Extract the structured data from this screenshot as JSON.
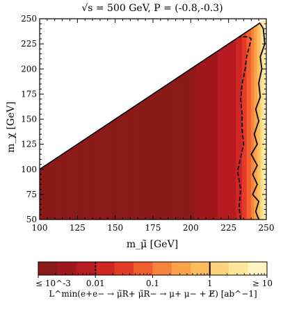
{
  "chart_data": {
    "type": "heatmap",
    "title": "√s = 500 GeV, P = (-0.8,-0.3)",
    "xlabel": "m_μ̃ [GeV]",
    "ylabel": "m_χ [GeV]",
    "xlim": [
      100,
      250
    ],
    "ylim": [
      50,
      250
    ],
    "xticks": [
      100,
      125,
      150,
      175,
      200,
      225,
      250
    ],
    "yticks": [
      50,
      75,
      100,
      125,
      150,
      175,
      200,
      225,
      250
    ],
    "xtick_labels": [
      "100",
      "125",
      "150",
      "175",
      "200",
      "225",
      "250"
    ],
    "ytick_labels": [
      "50",
      "75",
      "100",
      "125",
      "150",
      "175",
      "200",
      "225",
      "250"
    ],
    "allowed_region": "m_χ < m_μ̃",
    "colorbar": {
      "label": "L^min(e+e− → μ̃R+ μ̃R− → μ+ μ− + E̸) [ab^−1]",
      "scale": "log",
      "range": [
        0.001,
        10
      ],
      "tick_labels": [
        "≤ 10^-3",
        "0.01",
        "0.1",
        "1",
        "≥ 10"
      ],
      "tick_values": [
        0.001,
        0.01,
        0.1,
        1,
        10
      ],
      "placement": "bottom",
      "colors": [
        "#8b1a1a",
        "#a0181d",
        "#b81b22",
        "#ce2623",
        "#e23a26",
        "#f25d2e",
        "#f7843b",
        "#fba24b",
        "#fdbd5e",
        "#fed47c",
        "#fee79b",
        "#fff4bf"
      ]
    },
    "contours": [
      {
        "level": 0.01,
        "style": "dashed",
        "points": [
          [
            233,
            50
          ],
          [
            232,
            62
          ],
          [
            233,
            80
          ],
          [
            231,
            98
          ],
          [
            233,
            112
          ],
          [
            235,
            125
          ],
          [
            234,
            140
          ],
          [
            234,
            155
          ],
          [
            233,
            170
          ],
          [
            234,
            185
          ],
          [
            236,
            200
          ],
          [
            237,
            212
          ],
          [
            239,
            224
          ],
          [
            240,
            230
          ],
          [
            238,
            232
          ],
          [
            232,
            232
          ]
        ]
      },
      {
        "level": 1,
        "style": "solid",
        "points": [
          [
            245,
            50
          ],
          [
            243,
            58
          ],
          [
            245,
            68
          ],
          [
            241,
            75
          ],
          [
            244,
            85
          ],
          [
            241,
            95
          ],
          [
            244,
            104
          ],
          [
            240,
            115
          ],
          [
            244,
            125
          ],
          [
            242,
            135
          ],
          [
            245,
            148
          ],
          [
            243,
            160
          ],
          [
            246,
            172
          ],
          [
            245,
            186
          ],
          [
            247,
            200
          ],
          [
            246,
            212
          ],
          [
            249,
            225
          ],
          [
            248,
            240
          ],
          [
            246,
            245
          ]
        ]
      }
    ],
    "roughness_points": [
      {
        "x": 100,
        "level": 0.001
      },
      {
        "x": 195,
        "level": 0.001
      },
      {
        "x": 205,
        "level": 0.0025
      },
      {
        "x": 215,
        "level": 0.004
      },
      {
        "x": 222,
        "level": 0.006
      },
      {
        "x": 230,
        "level": 0.01
      },
      {
        "x": 236,
        "level": 0.03
      },
      {
        "x": 240,
        "level": 0.1
      },
      {
        "x": 243,
        "level": 0.3
      },
      {
        "x": 246,
        "level": 1
      },
      {
        "x": 248,
        "level": 3
      },
      {
        "x": 250,
        "level": 10
      }
    ]
  }
}
